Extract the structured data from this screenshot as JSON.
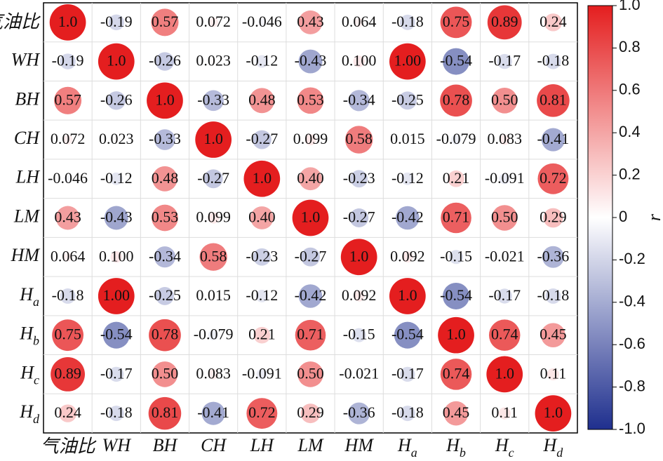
{
  "chart_data": {
    "type": "correlation",
    "categories": [
      "气油比",
      "WH",
      "BH",
      "CH",
      "LH",
      "LM",
      "HM",
      "Ha",
      "Hb",
      "Hc",
      "Hd"
    ],
    "values": [
      [
        1.0,
        -0.19,
        0.57,
        0.072,
        -0.046,
        0.43,
        0.064,
        -0.18,
        0.75,
        0.89,
        0.24
      ],
      [
        -0.19,
        1.0,
        -0.26,
        0.023,
        -0.12,
        -0.43,
        0.1,
        1.0,
        -0.54,
        -0.17,
        -0.18
      ],
      [
        0.57,
        -0.26,
        1.0,
        -0.33,
        0.48,
        0.53,
        -0.34,
        -0.25,
        0.78,
        0.5,
        0.81
      ],
      [
        0.072,
        0.023,
        -0.33,
        1.0,
        -0.27,
        0.099,
        0.58,
        0.015,
        -0.079,
        0.083,
        -0.41
      ],
      [
        -0.046,
        -0.12,
        0.48,
        -0.27,
        1.0,
        0.4,
        -0.23,
        -0.12,
        0.21,
        -0.091,
        0.72
      ],
      [
        0.43,
        -0.43,
        0.53,
        0.099,
        0.4,
        1.0,
        -0.27,
        -0.42,
        0.71,
        0.5,
        0.29
      ],
      [
        0.064,
        0.1,
        -0.34,
        0.58,
        -0.23,
        -0.27,
        1.0,
        0.092,
        -0.15,
        -0.021,
        -0.36
      ],
      [
        -0.18,
        1.0,
        -0.25,
        0.015,
        -0.12,
        -0.42,
        0.092,
        1.0,
        -0.54,
        -0.17,
        -0.18
      ],
      [
        0.75,
        -0.54,
        0.78,
        -0.079,
        0.21,
        0.71,
        -0.15,
        -0.54,
        1.0,
        0.74,
        0.45
      ],
      [
        0.89,
        -0.17,
        0.5,
        0.083,
        -0.091,
        0.5,
        -0.021,
        -0.17,
        0.74,
        1.0,
        0.11
      ],
      [
        0.24,
        -0.18,
        0.81,
        -0.41,
        0.72,
        0.29,
        -0.36,
        -0.18,
        0.45,
        0.11,
        1.0
      ]
    ],
    "value_labels": [
      [
        "1.0",
        "-0.19",
        "0.57",
        "0.072",
        "-0.046",
        "0.43",
        "0.064",
        "-0.18",
        "0.75",
        "0.89",
        "0.24"
      ],
      [
        "-0.19",
        "1.0",
        "-0.26",
        "0.023",
        "-0.12",
        "-0.43",
        "0.100",
        "1.00",
        "-0.54",
        "-0.17",
        "-0.18"
      ],
      [
        "0.57",
        "-0.26",
        "1.0",
        "-0.33",
        "0.48",
        "0.53",
        "-0.34",
        "-0.25",
        "0.78",
        "0.50",
        "0.81"
      ],
      [
        "0.072",
        "0.023",
        "-0.33",
        "1.0",
        "-0.27",
        "0.099",
        "0.58",
        "0.015",
        "-0.079",
        "0.083",
        "-0.41"
      ],
      [
        "-0.046",
        "-0.12",
        "0.48",
        "-0.27",
        "1.0",
        "0.40",
        "-0.23",
        "-0.12",
        "0.21",
        "-0.091",
        "0.72"
      ],
      [
        "0.43",
        "-0.43",
        "0.53",
        "0.099",
        "0.40",
        "1.0",
        "-0.27",
        "-0.42",
        "0.71",
        "0.50",
        "0.29"
      ],
      [
        "0.064",
        "0.100",
        "-0.34",
        "0.58",
        "-0.23",
        "-0.27",
        "1.0",
        "0.092",
        "-0.15",
        "-0.021",
        "-0.36"
      ],
      [
        "-0.18",
        "1.00",
        "-0.25",
        "0.015",
        "-0.12",
        "-0.42",
        "0.092",
        "1.0",
        "-0.54",
        "-0.17",
        "-0.18"
      ],
      [
        "0.75",
        "-0.54",
        "0.78",
        "-0.079",
        "0.21",
        "0.71",
        "-0.15",
        "-0.54",
        "1.0",
        "0.74",
        "0.45"
      ],
      [
        "0.89",
        "-0.17",
        "0.50",
        "0.083",
        "-0.091",
        "0.50",
        "-0.021",
        "-0.17",
        "0.74",
        "1.0",
        "0.11"
      ],
      [
        "0.24",
        "-0.18",
        "0.81",
        "-0.41",
        "0.72",
        "0.29",
        "-0.36",
        "-0.18",
        "0.45",
        "0.11",
        "1.0"
      ]
    ],
    "colormap": [
      "#1f2f8e",
      "#ffffff",
      "#e41e1f"
    ],
    "clim": [
      -1,
      1
    ],
    "cticks": [
      {
        "value": -1.0,
        "label": "-1.0"
      },
      -0.8,
      -0.6,
      -0.4,
      -0.2,
      0,
      0.2,
      0.4,
      0.6,
      0.8,
      {
        "value": 1.0,
        "label": "1.0"
      }
    ],
    "colorbar_label": "r",
    "grid": true
  }
}
